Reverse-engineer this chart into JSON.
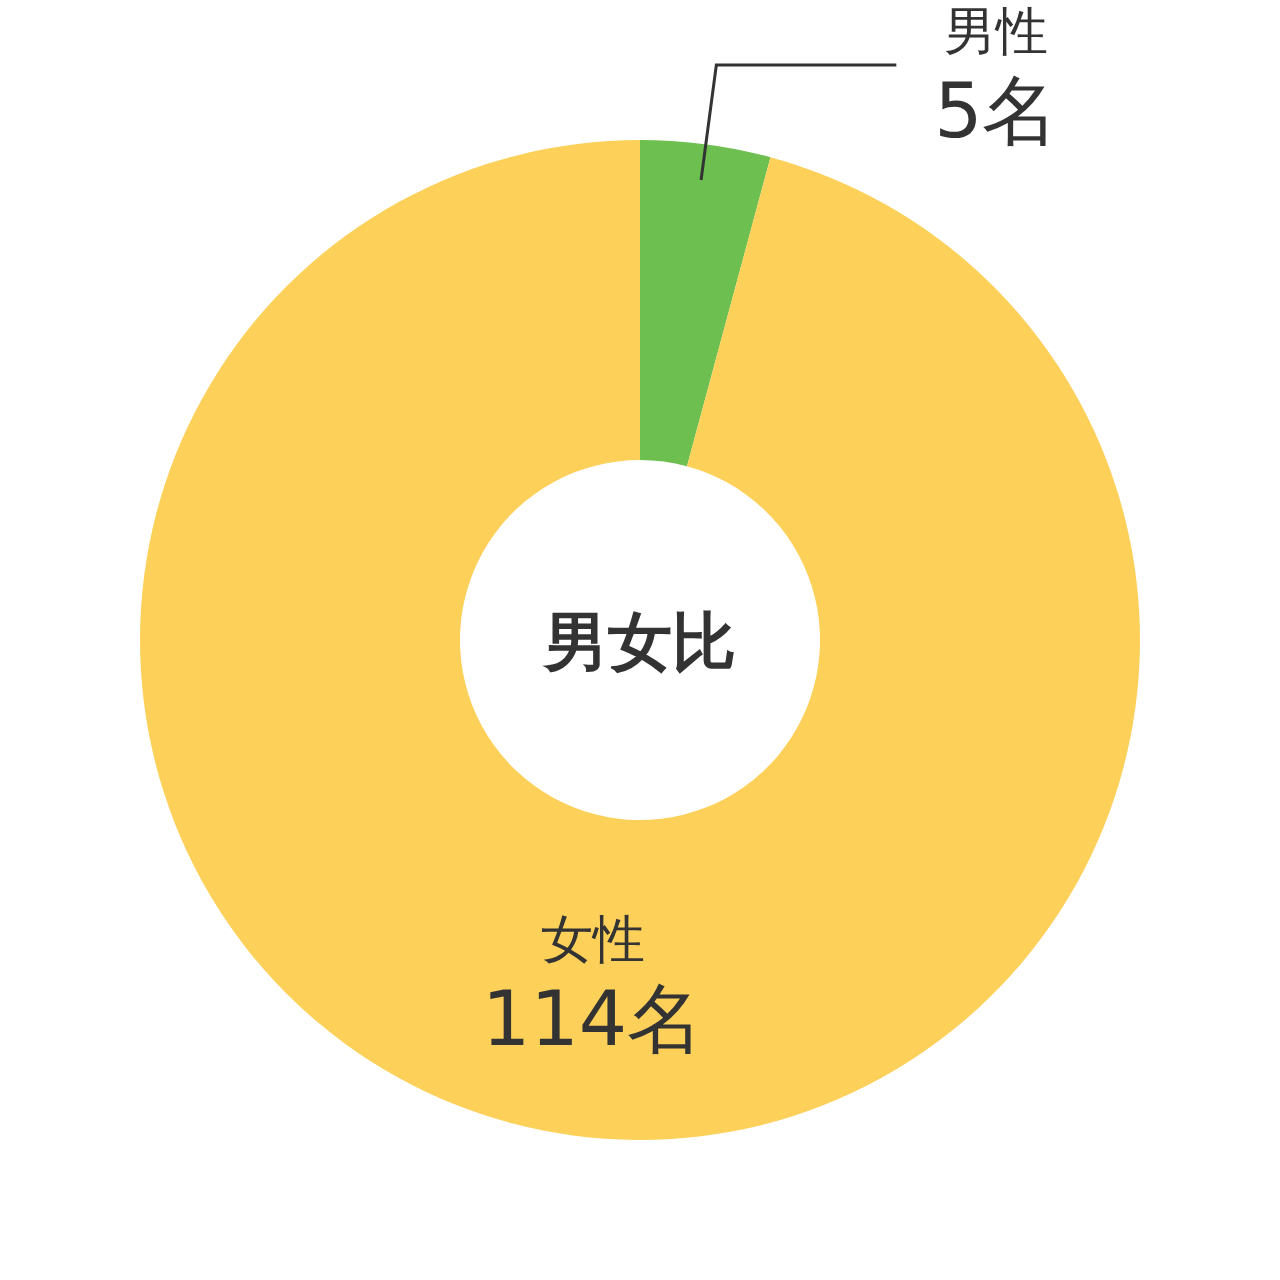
{
  "chart_data": {
    "type": "donut",
    "title": "男女比",
    "categories": [
      "男性",
      "女性"
    ],
    "values": [
      5,
      114
    ],
    "colors": [
      "#6dbf4f",
      "#fdd05a"
    ],
    "value_labels": [
      "5名",
      "114名"
    ]
  }
}
